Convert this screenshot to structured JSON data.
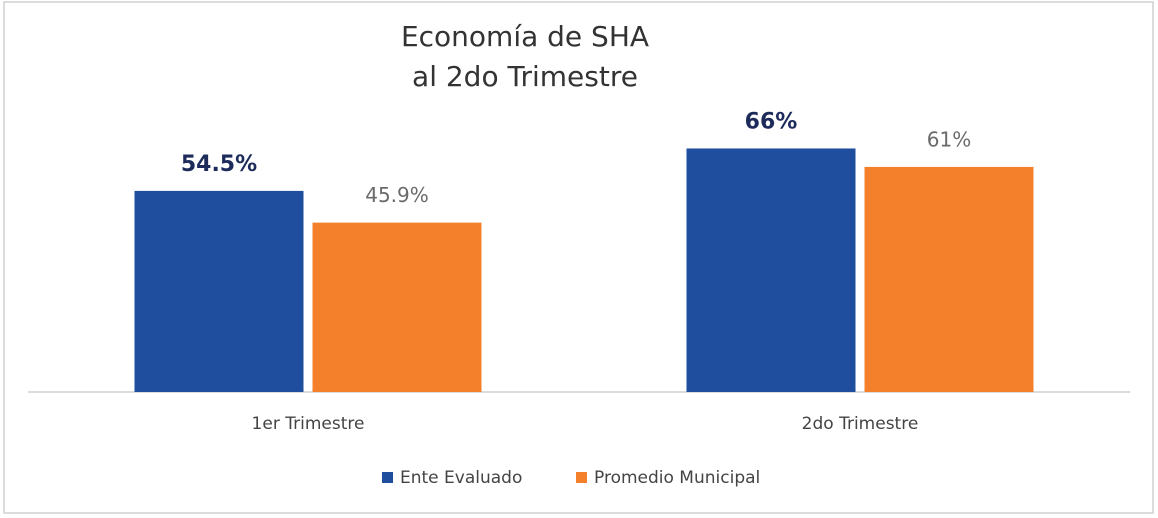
{
  "chart_data": {
    "type": "bar",
    "title": [
      "Economía de SHA",
      "al 2do Trimestre"
    ],
    "categories": [
      "1er Trimestre",
      "2do Trimestre"
    ],
    "series": [
      {
        "name": "Ente Evaluado",
        "color": "#1f4e9e",
        "values": [
          54.5,
          66
        ],
        "value_labels": [
          "54.5%",
          "66%"
        ]
      },
      {
        "name": "Promedio Municipal",
        "color": "#f5802b",
        "values": [
          45.9,
          61
        ],
        "value_labels": [
          "45.9%",
          "61%"
        ]
      }
    ],
    "legend": "bottom"
  }
}
